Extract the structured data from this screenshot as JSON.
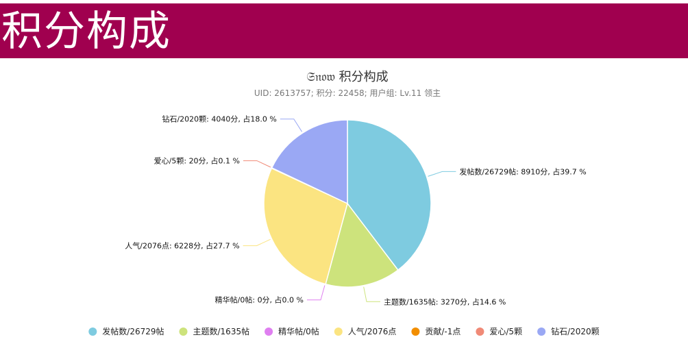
{
  "header": {
    "title": "积分构成"
  },
  "chart_data": {
    "type": "pie",
    "title": "𝔖𝔫𝔬𝔴 积分构成",
    "subtitle": "UID: 2613757; 积分: 22458; 用户组: Lv.11 领主",
    "legend_placement": "bottom",
    "slices": [
      {
        "name": "发帖数/26729帖",
        "value": 8910,
        "label": "发帖数/26729帖: 8910分, 占39.7 %",
        "color": "#7ecbe0"
      },
      {
        "name": "主题数/1635帖",
        "value": 3270,
        "label": "主题数/1635帖: 3270分, 占14.6 %",
        "color": "#cde37c"
      },
      {
        "name": "精华帖/0帖",
        "value": 0,
        "label": "精华帖/0帖: 0分, 占0.0 %",
        "color": "#df7ff0"
      },
      {
        "name": "人气/2076点",
        "value": 6228,
        "label": "人气/2076点: 6228分, 占27.7 %",
        "color": "#fbe481"
      },
      {
        "name": "贡献/-1点",
        "value": 0,
        "label": "",
        "color": "#f28e00"
      },
      {
        "name": "爱心/5颗",
        "value": 20,
        "label": "爱心/5颗: 20分, 占0.1 %",
        "color": "#f08a77"
      },
      {
        "name": "钻石/2020颗",
        "value": 4040,
        "label": "钻石/2020颗: 4040分, 占18.0 %",
        "color": "#9aa8f4"
      }
    ]
  }
}
